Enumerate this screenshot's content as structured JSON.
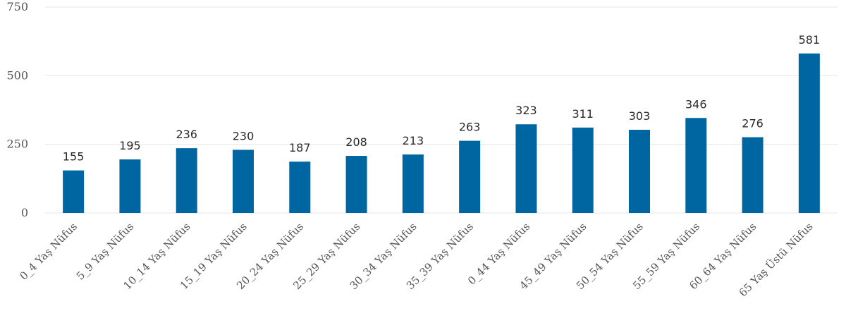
{
  "chart_data": {
    "type": "bar",
    "categories": [
      "0_4 Yaş Nüfus",
      "5_9 Yaş Nüfus",
      "10_14 Yaş Nüfus",
      "15_19 Yaş Nüfus",
      "20_24 Yaş Nüfus",
      "25_29 Yaş Nüfus",
      "30_34 Yaş Nüfus",
      "35_39 Yaş Nüfus",
      "0_44 Yaş Nüfus",
      "45_49 Yaş Nüfus",
      "50_54 Yaş Nüfus",
      "55_59 Yaş Nüfus",
      "60_64 Yaş Nüfus",
      "65 Yaş Üstü Nüfus"
    ],
    "values": [
      155,
      195,
      236,
      230,
      187,
      208,
      213,
      263,
      323,
      311,
      303,
      346,
      276,
      581
    ],
    "yticks": [
      0,
      250,
      500,
      750
    ],
    "ylim": [
      0,
      750
    ],
    "grid": true,
    "legend": "none",
    "bar_color": "#0066a1",
    "title": "",
    "xlabel": "",
    "ylabel": ""
  }
}
